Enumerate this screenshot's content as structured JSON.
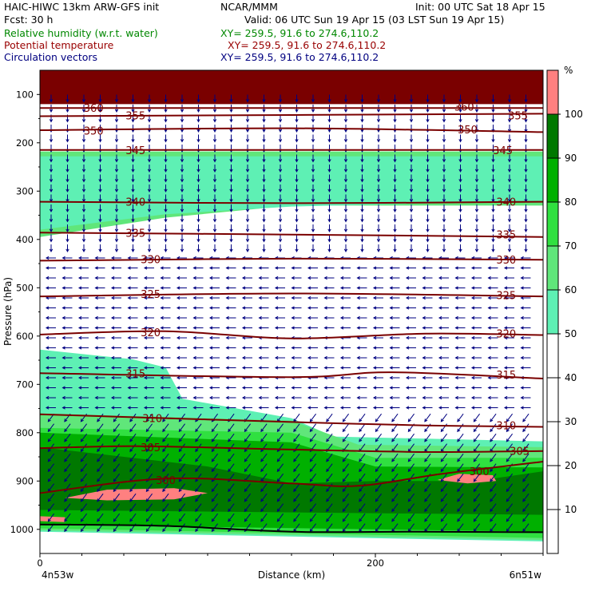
{
  "header": {
    "model": "HAIC-HIWC 13km ARW-GFS init",
    "org": "NCAR/MMM",
    "init": "Init: 00 UTC Sat 18 Apr 15",
    "fcst": "Fcst:    30 h",
    "valid": "Valid: 06 UTC Sun 19 Apr 15 (03 LST Sun 19 Apr 15)",
    "field1": "Relative humidity (w.r.t. water)",
    "field2": "Potential temperature",
    "field3": "Circulation vectors",
    "xy1": "XY= 259.5, 91.6 to 274.6,110.2",
    "xy2": "XY= 259.5, 91.6 to 274.6,110.2",
    "xy3": "XY= 259.5, 91.6 to 274.6,110.2",
    "color1": "#008800",
    "color2": "#990000",
    "color3": "#000080"
  },
  "chart_data": {
    "type": "heatmap",
    "description_kind": "vertical cross-section",
    "xlabel": "Distance (km)",
    "ylabel": "Pressure (hPa)",
    "xlim": [
      0,
      300
    ],
    "ylim": [
      1050,
      50
    ],
    "x_ticks": [
      0,
      200
    ],
    "y_ticks": [
      100,
      200,
      300,
      400,
      500,
      600,
      700,
      800,
      900,
      1000
    ],
    "left_endpoint_label": "4n53w",
    "right_endpoint_label": "6n51w",
    "colorbar": {
      "unit": "%",
      "levels": [
        10,
        20,
        30,
        40,
        50,
        60,
        70,
        80,
        90,
        100
      ],
      "fill_colors": [
        {
          "from": 50,
          "to": 60,
          "color": "#5ef0b4"
        },
        {
          "from": 60,
          "to": 70,
          "color": "#60e67a"
        },
        {
          "from": 70,
          "to": 80,
          "color": "#30e040"
        },
        {
          "from": 80,
          "to": 90,
          "color": "#00b000"
        },
        {
          "from": 90,
          "to": 100,
          "color": "#007800"
        },
        {
          "from": 100,
          "to": 110,
          "color": "#ff8080"
        }
      ]
    },
    "theta_contours": [
      {
        "value": 300,
        "points": [
          [
            0,
            925
          ],
          [
            75,
            895
          ],
          [
            150,
            905
          ],
          [
            190,
            910
          ],
          [
            240,
            885
          ],
          [
            300,
            860
          ]
        ],
        "labels": [
          [
            75,
            898
          ],
          [
            262,
            880
          ]
        ]
      },
      {
        "value": 305,
        "points": [
          [
            0,
            832
          ],
          [
            60,
            828
          ],
          [
            150,
            835
          ],
          [
            230,
            840
          ],
          [
            300,
            838
          ]
        ],
        "labels": [
          [
            66,
            830
          ],
          [
            286,
            838
          ]
        ]
      },
      {
        "value": 310,
        "points": [
          [
            0,
            762
          ],
          [
            75,
            770
          ],
          [
            150,
            778
          ],
          [
            230,
            785
          ],
          [
            300,
            788
          ]
        ],
        "labels": [
          [
            67,
            770
          ],
          [
            278,
            785
          ]
        ]
      },
      {
        "value": 315,
        "points": [
          [
            0,
            677
          ],
          [
            150,
            685
          ],
          [
            210,
            675
          ],
          [
            300,
            688
          ]
        ],
        "labels": [
          [
            57,
            677
          ],
          [
            278,
            680
          ]
        ]
      },
      {
        "value": 320,
        "points": [
          [
            0,
            597
          ],
          [
            75,
            590
          ],
          [
            150,
            605
          ],
          [
            230,
            595
          ],
          [
            300,
            598
          ]
        ],
        "labels": [
          [
            66,
            592
          ],
          [
            278,
            595
          ]
        ]
      },
      {
        "value": 325,
        "points": [
          [
            0,
            518
          ],
          [
            150,
            512
          ],
          [
            300,
            518
          ]
        ],
        "labels": [
          [
            66,
            513
          ],
          [
            278,
            515
          ]
        ]
      },
      {
        "value": 330,
        "points": [
          [
            0,
            444
          ],
          [
            150,
            440
          ],
          [
            300,
            442
          ]
        ],
        "labels": [
          [
            66,
            441
          ],
          [
            278,
            442
          ]
        ]
      },
      {
        "value": 335,
        "points": [
          [
            0,
            386
          ],
          [
            150,
            390
          ],
          [
            300,
            395
          ]
        ],
        "labels": [
          [
            57,
            386
          ],
          [
            278,
            390
          ]
        ]
      },
      {
        "value": 340,
        "points": [
          [
            0,
            322
          ],
          [
            150,
            325
          ],
          [
            300,
            322
          ]
        ],
        "labels": [
          [
            57,
            322
          ],
          [
            278,
            322
          ]
        ]
      },
      {
        "value": 345,
        "points": [
          [
            0,
            215
          ],
          [
            300,
            215
          ]
        ],
        "labels": [
          [
            57,
            215
          ],
          [
            276,
            215
          ]
        ]
      },
      {
        "value": 350,
        "points": [
          [
            0,
            174
          ],
          [
            150,
            170
          ],
          [
            300,
            178
          ]
        ],
        "labels": [
          [
            32,
            175
          ],
          [
            255,
            172
          ]
        ]
      },
      {
        "value": 355,
        "points": [
          [
            0,
            145
          ],
          [
            300,
            140
          ]
        ],
        "labels": [
          [
            57,
            143
          ],
          [
            285,
            143
          ]
        ]
      },
      {
        "value": 360,
        "points": [
          [
            0,
            128
          ],
          [
            300,
            128
          ]
        ],
        "labels": [
          [
            32,
            128
          ],
          [
            253,
            125
          ]
        ]
      }
    ],
    "rh_regions": [
      {
        "color": "#7a0000",
        "polygon": [
          [
            0,
            50
          ],
          [
            300,
            50
          ],
          [
            300,
            120
          ],
          [
            0,
            120
          ]
        ]
      },
      {
        "color": "#60e67a",
        "polygon": [
          [
            0,
            218
          ],
          [
            300,
            218
          ],
          [
            300,
            330
          ],
          [
            150,
            330
          ],
          [
            75,
            355
          ],
          [
            0,
            395
          ]
        ]
      },
      {
        "color": "#5ef0b4",
        "polygon": [
          [
            0,
            228
          ],
          [
            300,
            228
          ],
          [
            300,
            320
          ],
          [
            150,
            332
          ],
          [
            75,
            348
          ],
          [
            0,
            380
          ]
        ]
      },
      {
        "color": "#5ef0b4",
        "polygon": [
          [
            0,
            628
          ],
          [
            55,
            648
          ],
          [
            75,
            665
          ],
          [
            85,
            730
          ],
          [
            150,
            770
          ],
          [
            175,
            808
          ],
          [
            300,
            818
          ],
          [
            300,
            1025
          ],
          [
            0,
            1005
          ]
        ]
      },
      {
        "color": "#60e67a",
        "polygon": [
          [
            0,
            760
          ],
          [
            150,
            775
          ],
          [
            190,
            825
          ],
          [
            300,
            830
          ],
          [
            300,
            1022
          ],
          [
            0,
            1002
          ]
        ]
      },
      {
        "color": "#30e040",
        "polygon": [
          [
            0,
            790
          ],
          [
            150,
            800
          ],
          [
            200,
            852
          ],
          [
            300,
            852
          ],
          [
            300,
            1018
          ],
          [
            0,
            998
          ]
        ]
      },
      {
        "color": "#00b000",
        "polygon": [
          [
            0,
            800
          ],
          [
            150,
            820
          ],
          [
            200,
            870
          ],
          [
            300,
            872
          ],
          [
            300,
            1005
          ],
          [
            0,
            990
          ]
        ]
      },
      {
        "color": "#007800",
        "polygon": [
          [
            0,
            830
          ],
          [
            100,
            870
          ],
          [
            150,
            905
          ],
          [
            200,
            900
          ],
          [
            260,
            900
          ],
          [
            300,
            880
          ],
          [
            300,
            970
          ],
          [
            0,
            960
          ]
        ]
      },
      {
        "color": "#ff8080",
        "polygon": [
          [
            15,
            935
          ],
          [
            40,
            918
          ],
          [
            80,
            915
          ],
          [
            100,
            925
          ],
          [
            80,
            938
          ],
          [
            40,
            940
          ]
        ]
      },
      {
        "color": "#ff8080",
        "polygon": [
          [
            237,
            898
          ],
          [
            250,
            885
          ],
          [
            270,
            888
          ],
          [
            272,
            900
          ],
          [
            255,
            905
          ]
        ]
      },
      {
        "color": "#ff8080",
        "polygon": [
          [
            0,
            973
          ],
          [
            15,
            975
          ],
          [
            15,
            985
          ],
          [
            0,
            983
          ]
        ]
      }
    ],
    "vectors": {
      "upper": {
        "from": 100,
        "to": 420,
        "direction": "down"
      },
      "middle": {
        "from": 420,
        "to": 760,
        "direction": "left"
      },
      "lower": {
        "from": 760,
        "to": 1000,
        "direction": "down-left"
      }
    },
    "terrain": {
      "points": [
        [
          0,
          990
        ],
        [
          75,
          993
        ],
        [
          150,
          1005
        ],
        [
          225,
          1005
        ],
        [
          300,
          1006
        ]
      ]
    }
  }
}
